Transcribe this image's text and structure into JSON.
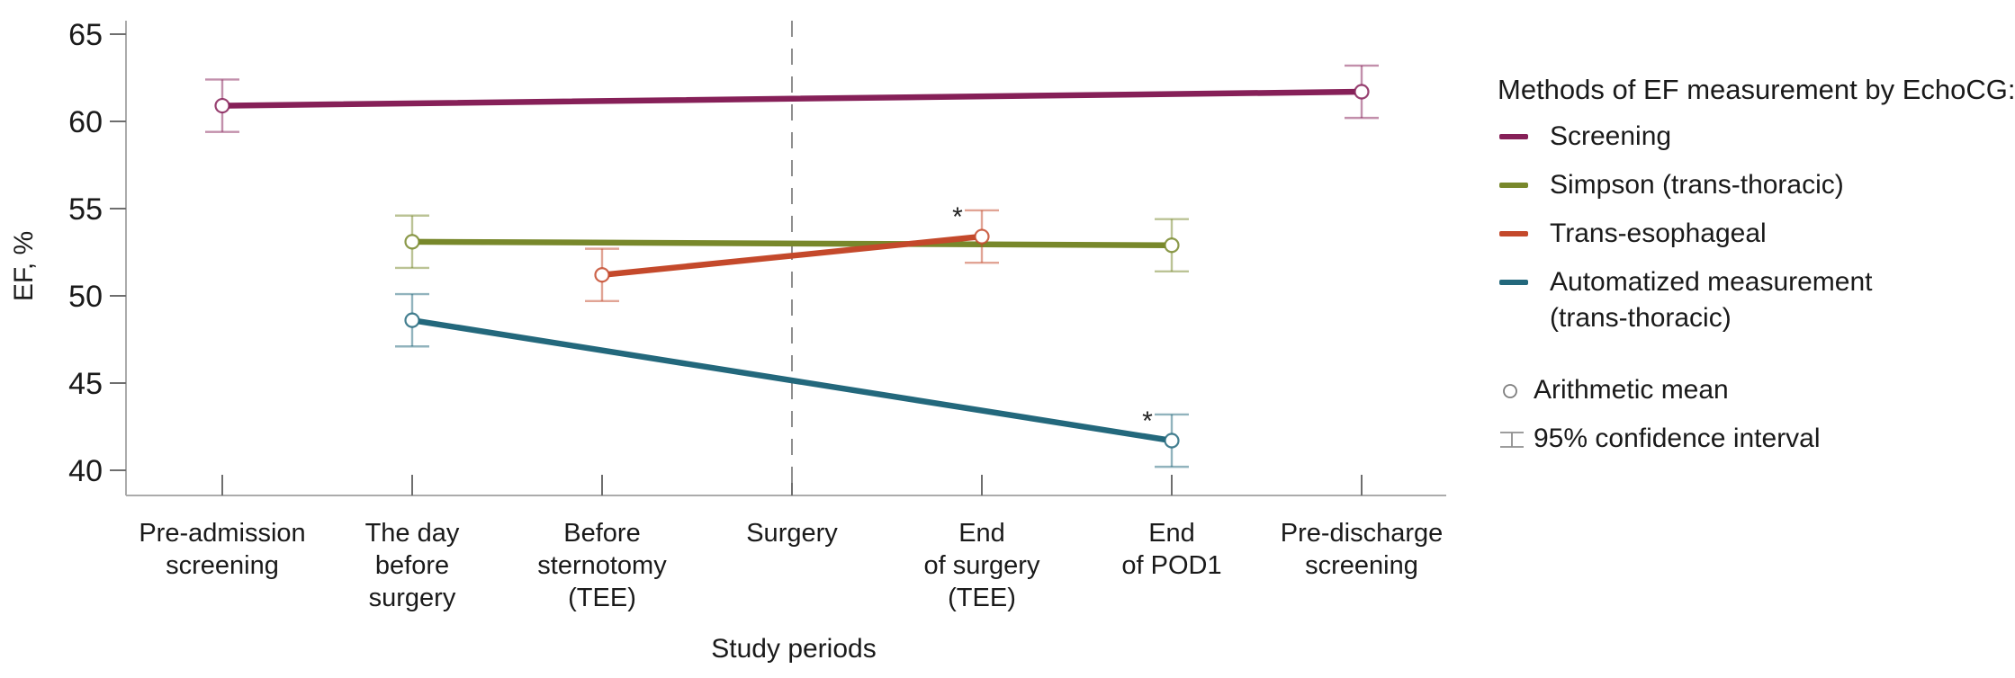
{
  "chart_data": {
    "type": "line",
    "title": "",
    "xlabel": "Study periods",
    "ylabel": "EF, %",
    "ylim": [
      39.5,
      65.8
    ],
    "yticks": [
      40,
      45,
      50,
      55,
      60,
      65
    ],
    "grid": false,
    "categories": [
      [
        "Pre-admission",
        "screening"
      ],
      [
        "The day",
        "before",
        "surgery"
      ],
      [
        "Before",
        "sternotomy",
        "(TEE)"
      ],
      [
        "Surgery"
      ],
      [
        "End",
        "of surgery",
        "(TEE)"
      ],
      [
        "End",
        "of POD1"
      ],
      [
        "Pre-discharge",
        "screening"
      ]
    ],
    "reference_line": {
      "category_index": 3,
      "style": "dashed",
      "color": "#8f8f8f"
    },
    "series": [
      {
        "name": "Screening",
        "color": "#862058",
        "points": [
          {
            "category_index": 0,
            "mean": 60.9,
            "ci_low": 59.4,
            "ci_high": 62.4
          },
          {
            "category_index": 6,
            "mean": 61.7,
            "ci_low": 60.2,
            "ci_high": 63.2
          }
        ]
      },
      {
        "name": "Simpson (trans-thoracic)",
        "color": "#78882B",
        "points": [
          {
            "category_index": 1,
            "mean": 53.1,
            "ci_low": 51.6,
            "ci_high": 54.6
          },
          {
            "category_index": 5,
            "mean": 52.9,
            "ci_low": 51.4,
            "ci_high": 54.4
          }
        ]
      },
      {
        "name": "Trans-esophageal",
        "color": "#C4492B",
        "points": [
          {
            "category_index": 2,
            "mean": 51.2,
            "ci_low": 49.7,
            "ci_high": 52.7
          },
          {
            "category_index": 4,
            "mean": 53.4,
            "ci_low": 51.9,
            "ci_high": 54.9,
            "annotation": "*"
          }
        ]
      },
      {
        "name": "Automatized measurement (trans-thoracic)",
        "legend_lines": [
          "Automatized measurement",
          "(trans-thoracic)"
        ],
        "color": "#23687C",
        "points": [
          {
            "category_index": 1,
            "mean": 48.6,
            "ci_low": 47.1,
            "ci_high": 50.1
          },
          {
            "category_index": 5,
            "mean": 41.7,
            "ci_low": 40.2,
            "ci_high": 43.2,
            "annotation": "*"
          }
        ]
      }
    ],
    "marker": "open-circle",
    "legend_position": "right"
  },
  "legend": {
    "title": "Methods of EF measurement by EchoCG:",
    "mean_label": "Arithmetic mean",
    "ci_label": "95% confidence interval"
  }
}
